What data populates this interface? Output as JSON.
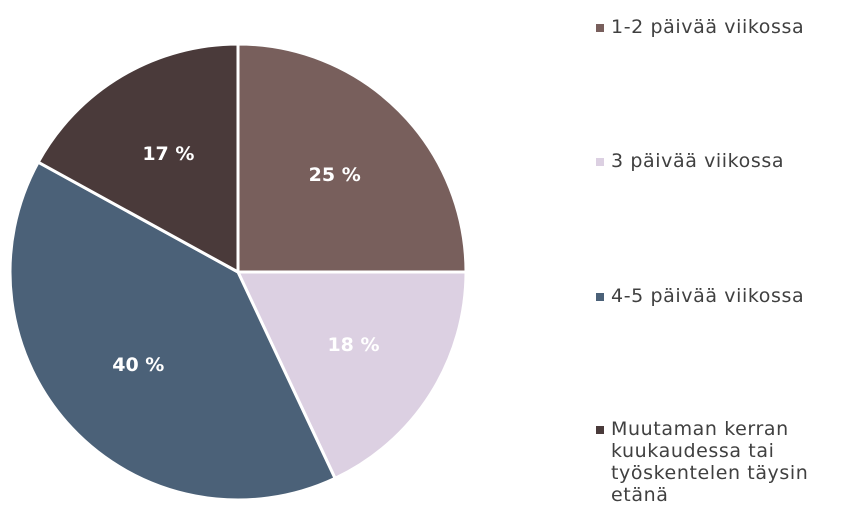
{
  "chart_data": {
    "type": "pie",
    "categories": [
      "1-2 päivää viikossa",
      "3 päivää viikossa",
      "4-5 päivää viikossa",
      "Muutaman kerran kuukaudessa tai työskentelen täysin etänä"
    ],
    "values": [
      25,
      18,
      40,
      17
    ],
    "value_labels": [
      "25 %",
      "18 %",
      "40 %",
      "17 %"
    ],
    "colors": [
      "#785f5c",
      "#dcd0e2",
      "#4b6178",
      "#4a3a3a"
    ],
    "legend": "right"
  }
}
